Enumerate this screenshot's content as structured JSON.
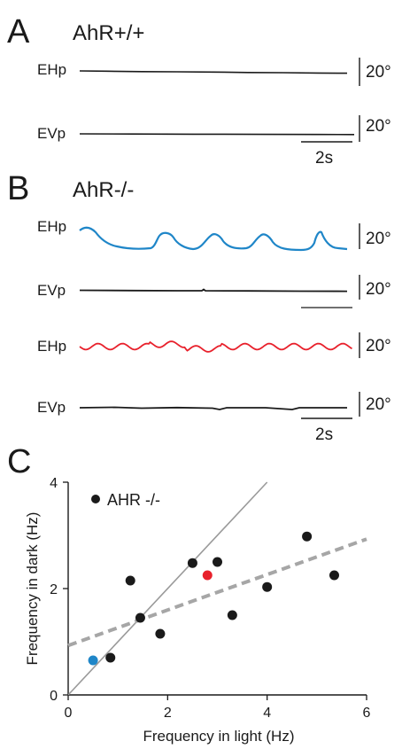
{
  "panels": {
    "A": {
      "letter": "A",
      "title": "AhR+/+",
      "traces": [
        {
          "label": "EHp",
          "scale_label": "20°",
          "color": "#1a1a1a",
          "activity": "flat"
        },
        {
          "label": "EVp",
          "scale_label": "20°",
          "color": "#1a1a1a",
          "activity": "flat"
        }
      ],
      "time_scale_label": "2s"
    },
    "B": {
      "letter": "B",
      "title": "AhR-/-",
      "traces": [
        {
          "label": "EHp",
          "scale_label": "20°",
          "color": "#1f86c8",
          "activity": "slow oscillation"
        },
        {
          "label": "EVp",
          "scale_label": "20°",
          "color": "#1a1a1a",
          "activity": "flat"
        },
        {
          "label": "EHp",
          "scale_label": "20°",
          "color": "#e8212c",
          "activity": "fast oscillation"
        },
        {
          "label": "EVp",
          "scale_label": "20°",
          "color": "#1a1a1a",
          "activity": "flat"
        }
      ],
      "time_scale_label": "2s"
    },
    "C": {
      "letter": "C"
    }
  },
  "chart_data": {
    "type": "scatter",
    "xlabel": "Frequency in light (Hz)",
    "ylabel": "Frequency in dark (Hz)",
    "xlim": [
      0,
      6
    ],
    "ylim": [
      0,
      4
    ],
    "xticks": [
      "0",
      "2",
      "4",
      "6"
    ],
    "yticks": [
      "0",
      "2",
      "4"
    ],
    "legend": {
      "label": "AHR -/-",
      "marker_color": "#1a1a1a",
      "placement": "top-left"
    },
    "points": [
      {
        "x": 0.5,
        "y": 0.65,
        "color": "#1f86c8"
      },
      {
        "x": 0.85,
        "y": 0.7,
        "color": "#1a1a1a"
      },
      {
        "x": 1.25,
        "y": 2.15,
        "color": "#1a1a1a"
      },
      {
        "x": 1.45,
        "y": 1.45,
        "color": "#1a1a1a"
      },
      {
        "x": 1.85,
        "y": 1.15,
        "color": "#1a1a1a"
      },
      {
        "x": 2.5,
        "y": 2.48,
        "color": "#1a1a1a"
      },
      {
        "x": 2.8,
        "y": 2.25,
        "color": "#e8212c"
      },
      {
        "x": 3.0,
        "y": 2.5,
        "color": "#1a1a1a"
      },
      {
        "x": 3.3,
        "y": 1.5,
        "color": "#1a1a1a"
      },
      {
        "x": 4.0,
        "y": 2.03,
        "color": "#1a1a1a"
      },
      {
        "x": 4.8,
        "y": 2.98,
        "color": "#1a1a1a"
      },
      {
        "x": 5.35,
        "y": 2.25,
        "color": "#1a1a1a"
      }
    ],
    "lines": [
      {
        "kind": "identity",
        "style": "solid",
        "color": "#9a9a9a",
        "x": [
          0,
          4
        ],
        "y": [
          0,
          4
        ]
      },
      {
        "kind": "regression",
        "style": "dashed",
        "color": "#a6a6a6",
        "x": [
          0,
          6
        ],
        "y": [
          0.93,
          2.93
        ]
      }
    ]
  }
}
